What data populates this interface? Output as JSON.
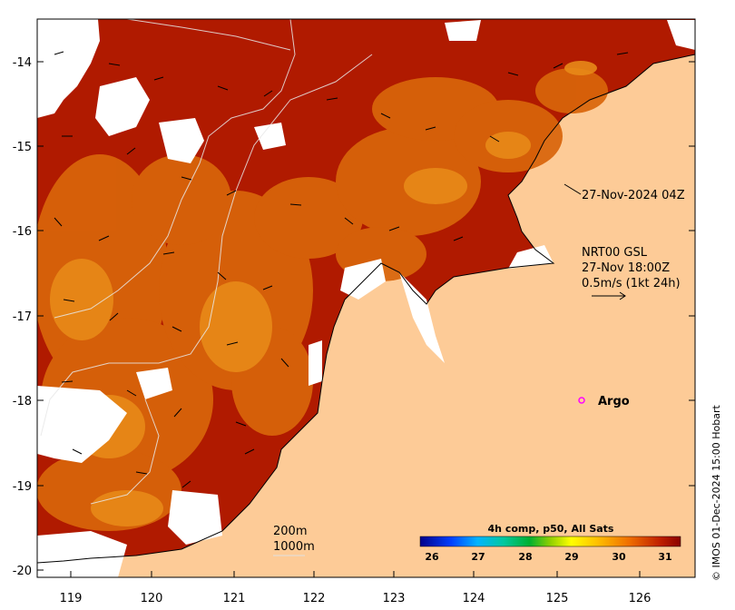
{
  "map": {
    "lon_ticks": [
      "119",
      "120",
      "121",
      "122",
      "123",
      "124",
      "125",
      "126"
    ],
    "lat_ticks": [
      "-14",
      "-15",
      "-16",
      "-17",
      "-18",
      "-19",
      "-20"
    ],
    "timestamp_label": "27-Nov-2024 04Z",
    "current_source": "NRT00 GSL",
    "current_time": "27-Nov 18:00Z",
    "current_scale": "0.5m/s (1kt 24h)",
    "argo_label": "Argo",
    "depth_label_1": "200m",
    "depth_label_2": "1000m",
    "colorbar_title": "4h comp, p50, All Sats",
    "colorbar_ticks": [
      "26",
      "27",
      "28",
      "29",
      "30",
      "31"
    ],
    "credit": "© IMOS 01-Dec-2024 15:00 Hobart",
    "colors": {
      "land": "#FDCB97",
      "sea_warm": "#B01A00",
      "sea_mid": "#D9650A",
      "cloud": "#ffffff",
      "argo": "#ff00ff"
    }
  }
}
